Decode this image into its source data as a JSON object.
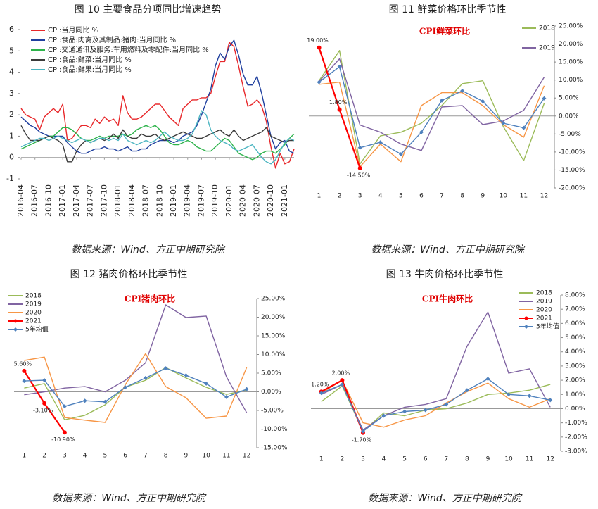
{
  "chart_data": [
    {
      "type": "line",
      "title": "图 10  主要食品分项同比增速趋势",
      "source": "数据来源：Wind、方正中期研究院",
      "legend": "upper-left",
      "y_axis": "left",
      "categories": [
        "2016-04",
        null,
        null,
        "2016-07",
        null,
        null,
        "2016-10",
        null,
        null,
        "2017-01",
        null,
        null,
        "2017-04",
        null,
        null,
        "2017-07",
        null,
        null,
        "2017-10",
        null,
        null,
        "2018-01",
        null,
        null,
        "2018-04",
        null,
        null,
        "2018-07",
        null,
        null,
        "2018-10",
        null,
        null,
        "2019-01",
        null,
        null,
        "2019-04",
        null,
        null,
        "2019-07",
        null,
        null,
        "2019-10",
        null,
        null,
        "2020-01",
        null,
        null,
        "2020-04",
        null,
        null,
        "2020-07",
        null,
        null,
        "2020-10",
        null,
        null,
        "2021-01",
        null,
        null
      ],
      "ylim": [
        -1,
        6
      ],
      "yticks": [
        -1,
        0,
        1,
        2,
        3,
        4,
        5,
        6
      ],
      "series": [
        {
          "name": "CPI:当月同比 %",
          "color": "#e8282b",
          "values": [
            2.3,
            2.0,
            1.9,
            1.8,
            1.3,
            1.9,
            2.1,
            2.3,
            2.1,
            2.5,
            0.8,
            0.9,
            1.2,
            1.5,
            1.5,
            1.4,
            1.8,
            1.6,
            1.9,
            1.7,
            1.8,
            1.5,
            2.9,
            2.1,
            1.8,
            1.8,
            1.9,
            2.1,
            2.3,
            2.5,
            2.5,
            2.2,
            1.9,
            1.7,
            1.5,
            2.3,
            2.5,
            2.7,
            2.7,
            2.8,
            2.8,
            3.0,
            3.8,
            4.5,
            4.5,
            5.4,
            5.2,
            4.3,
            3.3,
            2.4,
            2.5,
            2.7,
            2.4,
            1.7,
            0.5,
            -0.5,
            0.2,
            -0.3,
            -0.2,
            0.4
          ]
        },
        {
          "name": "CPI:食品:肉禽及其制品:猪肉:当月同比 %",
          "color": "#1f3f9e",
          "values": [
            1.9,
            1.7,
            1.5,
            1.4,
            1.2,
            1.1,
            1.0,
            1.0,
            1.0,
            1.0,
            0.7,
            0.5,
            0.3,
            0.2,
            0.2,
            0.3,
            0.4,
            0.4,
            0.5,
            0.4,
            0.4,
            0.3,
            0.4,
            0.5,
            0.3,
            0.3,
            0.4,
            0.4,
            0.6,
            0.7,
            0.8,
            0.8,
            0.8,
            0.7,
            0.8,
            1.0,
            1.1,
            1.2,
            1.5,
            2.0,
            2.6,
            3.2,
            4.3,
            4.9,
            4.6,
            5.2,
            5.5,
            4.8,
            3.9,
            3.4,
            3.4,
            3.8,
            3.0,
            2.0,
            1.0,
            0.4,
            0.7,
            0.8,
            0.3,
            0.2
          ]
        },
        {
          "name": "CPI:交通通讯及服务:车用燃料及零配件:当月同比 %",
          "color": "#2db34a",
          "values": [
            0.4,
            0.5,
            0.6,
            0.7,
            0.8,
            0.9,
            1.0,
            1.0,
            1.2,
            1.4,
            1.4,
            1.3,
            1.1,
            0.9,
            0.8,
            0.8,
            0.9,
            1.0,
            0.9,
            1.0,
            1.0,
            1.0,
            1.1,
            1.0,
            1.1,
            1.3,
            1.4,
            1.5,
            1.4,
            1.5,
            1.3,
            1.0,
            0.7,
            0.6,
            0.6,
            0.7,
            0.8,
            0.7,
            0.5,
            0.4,
            0.3,
            0.3,
            0.5,
            0.7,
            0.9,
            0.8,
            0.5,
            0.2,
            0.1,
            0.0,
            -0.1,
            0.0,
            0.2,
            0.3,
            0.3,
            0.2,
            0.4,
            0.6,
            0.9,
            1.1
          ]
        },
        {
          "name": "CPI:食品:鲜菜:当月同比 %",
          "color": "#3a3a3a",
          "values": [
            1.5,
            1.1,
            0.8,
            0.8,
            0.8,
            0.9,
            1.0,
            0.9,
            0.8,
            0.6,
            -0.2,
            -0.2,
            0.3,
            0.6,
            0.8,
            0.7,
            0.8,
            0.9,
            0.8,
            0.9,
            1.1,
            0.9,
            1.3,
            1.0,
            0.9,
            0.9,
            1.1,
            1.0,
            1.0,
            1.1,
            0.9,
            0.8,
            0.9,
            1.0,
            1.1,
            1.2,
            1.1,
            1.0,
            0.9,
            0.9,
            1.0,
            1.1,
            1.2,
            1.3,
            1.1,
            1.0,
            1.3,
            1.0,
            0.8,
            0.9,
            1.0,
            1.1,
            1.2,
            1.4,
            1.0,
            0.9,
            0.8,
            0.7,
            0.8,
            0.8
          ]
        },
        {
          "name": "CPI:食品:鲜果:当月同比 %",
          "color": "#4bb5c1",
          "values": [
            0.5,
            0.6,
            0.7,
            0.8,
            0.9,
            0.9,
            0.8,
            0.9,
            1.0,
            0.9,
            0.8,
            0.7,
            0.8,
            0.9,
            0.8,
            0.7,
            0.8,
            0.9,
            0.9,
            0.8,
            0.9,
            0.8,
            1.1,
            0.8,
            0.7,
            0.6,
            0.7,
            0.8,
            0.7,
            0.8,
            1.0,
            1.2,
            1.0,
            0.9,
            0.8,
            0.8,
            0.9,
            1.1,
            1.6,
            2.2,
            2.0,
            1.3,
            1.0,
            0.8,
            0.7,
            0.6,
            0.4,
            0.3,
            0.4,
            0.5,
            0.6,
            0.3,
            0.0,
            -0.2,
            -0.3,
            -0.1,
            0.3,
            0.7,
            0.9,
            0.8
          ]
        }
      ]
    },
    {
      "type": "line",
      "title": "图 11  鲜菜价格环比季节性",
      "subtitle": "CPI鲜菜环比",
      "source": "数据来源：Wind、方正中期研究院",
      "legend": "upper-right",
      "y_axis": "right",
      "categories": [
        "1",
        "2",
        "3",
        "4",
        "5",
        "6",
        "7",
        "8",
        "9",
        "10",
        "11",
        "12"
      ],
      "ylim": [
        -20,
        25
      ],
      "yticks": [
        {
          "value": 25,
          "label": "25.00%"
        },
        {
          "value": 20,
          "label": "20.00%"
        },
        {
          "value": 15,
          "label": "15.00%"
        },
        {
          "value": 10,
          "label": "10.00%"
        },
        {
          "value": 5,
          "label": "5.00%"
        },
        {
          "value": 0,
          "label": "0.00%"
        },
        {
          "value": -5,
          "label": "-5.00%"
        },
        {
          "value": -10,
          "label": "-10.00%"
        },
        {
          "value": -15,
          "label": "-15.00%"
        },
        {
          "value": -20,
          "label": "-20.00%"
        }
      ],
      "series": [
        {
          "name": "2018",
          "color": "#9bbb59",
          "values": [
            9.8,
            18.2,
            -13.3,
            -5.5,
            -4.5,
            -2,
            2.9,
            9,
            9.8,
            -2.9,
            -12.4,
            3.5
          ]
        },
        {
          "name": "2019",
          "color": "#8064a2",
          "values": [
            9.6,
            15.9,
            -2.5,
            -4.5,
            -7.8,
            -9.6,
            2.5,
            2.9,
            -2.4,
            -1.4,
            1.6,
            10.8
          ]
        },
        {
          "color": "#f79646",
          "values": [
            8.8,
            9.4,
            -14.1,
            -7.8,
            -12.7,
            2.9,
            6.5,
            6.5,
            2.9,
            -2.4,
            -5.9,
            8.4
          ]
        },
        {
          "color": "#ff0000",
          "marker": "circle",
          "values": [
            19,
            1.8,
            -14.5,
            null,
            null,
            null,
            null,
            null,
            null,
            null,
            null,
            null
          ],
          "value_labels": [
            "19.00%",
            "1.80%",
            "-14.50%",
            null,
            null,
            null,
            null,
            null,
            null,
            null,
            null,
            null
          ]
        },
        {
          "color": "#4f81bd",
          "marker": "diamond",
          "values": [
            9.4,
            13.7,
            -8.8,
            -7.3,
            -10.6,
            -4.5,
            4.3,
            7,
            4.1,
            -2,
            -3.3,
            4.9
          ]
        }
      ]
    },
    {
      "type": "line",
      "title": "图 12  猪肉价格环比季节性",
      "subtitle": "CPI猪肉环比",
      "source": "数据来源：Wind、方正中期研究院",
      "legend": "upper-left",
      "y_axis": "right",
      "categories": [
        "1",
        "2",
        "3",
        "4",
        "5",
        "6",
        "7",
        "8",
        "9",
        "10",
        "11",
        "12"
      ],
      "ylim": [
        -15,
        25
      ],
      "yticks": [
        {
          "value": 25,
          "label": "25.00%"
        },
        {
          "value": 20,
          "label": "20.00%"
        },
        {
          "value": 15,
          "label": "15.00%"
        },
        {
          "value": 10,
          "label": "10.00%"
        },
        {
          "value": 5,
          "label": "5.00%"
        },
        {
          "value": 0,
          "label": "0.00%"
        },
        {
          "value": -5,
          "label": "-5.00%"
        },
        {
          "value": -10,
          "label": "-10.00%"
        },
        {
          "value": -15,
          "label": "-15.00%"
        }
      ],
      "series": [
        {
          "name": "2018",
          "color": "#9bbb59",
          "values": [
            1,
            2.2,
            -7.5,
            -6.3,
            -3.5,
            1.2,
            3.1,
            6.5,
            3.7,
            1.2,
            -0.7,
            0.5
          ]
        },
        {
          "name": "2019",
          "color": "#8064a2",
          "values": [
            -0.8,
            0,
            1,
            1.4,
            0,
            3.1,
            7.8,
            23.3,
            19.9,
            20.3,
            4,
            -5.6
          ]
        },
        {
          "name": "2020",
          "color": "#f79646",
          "values": [
            8.4,
            9.3,
            -6.9,
            -7.6,
            -8.2,
            1.9,
            10.2,
            1.4,
            -1.6,
            -7.1,
            -6.5,
            6.5
          ]
        },
        {
          "name": "2021",
          "color": "#ff0000",
          "marker": "circle",
          "values": [
            5.6,
            -3.1,
            -10.9,
            null,
            null,
            null,
            null,
            null,
            null,
            null,
            null,
            null
          ],
          "value_labels": [
            "5.60%",
            "-3.10%",
            "-10.90%",
            null,
            null,
            null,
            null,
            null,
            null,
            null,
            null,
            null
          ]
        },
        {
          "name": "5年均值",
          "color": "#4f81bd",
          "marker": "diamond",
          "values": [
            2.9,
            3.1,
            -3.9,
            -2.4,
            -2.7,
            1.2,
            3.7,
            6.3,
            4.4,
            2.2,
            -1.4,
            0.7
          ]
        }
      ]
    },
    {
      "type": "line",
      "title": "图 13  牛肉价格环比季节性",
      "subtitle": "CPI牛肉环比",
      "source": "数据来源：Wind、方正中期研究院",
      "legend": "upper-right",
      "y_axis": "right",
      "categories": [
        "1",
        "2",
        "3",
        "4",
        "5",
        "6",
        "7",
        "8",
        "9",
        "10",
        "11",
        "12"
      ],
      "ylim": [
        -3,
        8
      ],
      "yticks": [
        {
          "value": 8,
          "label": "8.00%"
        },
        {
          "value": 7,
          "label": "7.00%"
        },
        {
          "value": 6,
          "label": "6.00%"
        },
        {
          "value": 5,
          "label": "5.00%"
        },
        {
          "value": 4,
          "label": "4.00%"
        },
        {
          "value": 3,
          "label": "3.00%"
        },
        {
          "value": 2,
          "label": "2.00%"
        },
        {
          "value": 1,
          "label": "1.00%"
        },
        {
          "value": 0,
          "label": "0.00%"
        },
        {
          "value": -1,
          "label": "-1.00%"
        },
        {
          "value": -2,
          "label": "-2.00%"
        },
        {
          "value": -3,
          "label": "-3.00%"
        }
      ],
      "series": [
        {
          "name": "2018",
          "color": "#9bbb59",
          "values": [
            0.5,
            1.6,
            -1.6,
            -0.3,
            -0.5,
            -0.1,
            0,
            0.4,
            1,
            1.1,
            1.3,
            1.7
          ]
        },
        {
          "name": "2019",
          "color": "#8064a2",
          "values": [
            1,
            1.7,
            -1.5,
            -0.5,
            0.1,
            0.3,
            0.7,
            4.4,
            6.8,
            2.5,
            2.8,
            0.1
          ]
        },
        {
          "name": "2020",
          "color": "#f79646",
          "values": [
            1.1,
            2,
            -1,
            -1.3,
            -0.8,
            -0.5,
            0.4,
            1.2,
            1.8,
            0.7,
            0.1,
            0.7
          ]
        },
        {
          "name": "2021",
          "color": "#ff0000",
          "marker": "circle",
          "values": [
            1.2,
            2,
            -1.7,
            null,
            null,
            null,
            null,
            null,
            null,
            null,
            null,
            null
          ],
          "value_labels": [
            "1.20%",
            "2.00%",
            "-1.70%",
            null,
            null,
            null,
            null,
            null,
            null,
            null,
            null,
            null
          ]
        },
        {
          "name": "5年均值",
          "color": "#4f81bd",
          "marker": "diamond",
          "values": [
            1.1,
            1.7,
            -1.6,
            -0.5,
            -0.2,
            -0.1,
            0.3,
            1.3,
            2.1,
            1,
            0.9,
            0.6
          ]
        }
      ]
    }
  ]
}
